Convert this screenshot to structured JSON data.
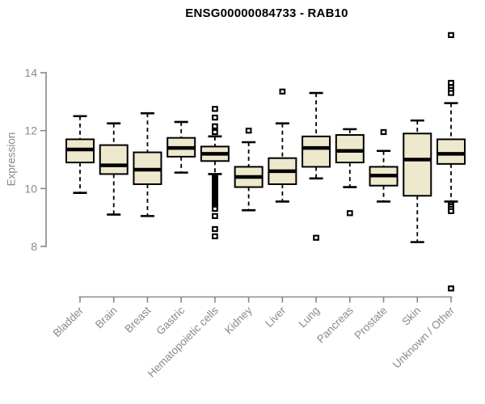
{
  "chart_data": {
    "type": "boxplot",
    "title": "ENSG00000084733 - RAB10",
    "ylabel": "Expression",
    "xlabel": "",
    "ylim": [
      6.3,
      15.5
    ],
    "yticks": [
      8,
      10,
      12,
      14
    ],
    "grid": false,
    "legend": "none",
    "box_fill_color": "#EEE8CD",
    "box_stroke_color": "#000000",
    "axis_color": "#888888",
    "tick_label_color": "#8a8a8a",
    "categories": [
      "Bladder",
      "Brain",
      "Breast",
      "Gastric",
      "Hematopoietic cells",
      "Kidney",
      "Liver",
      "Lung",
      "Pancreas",
      "Prostate",
      "Skin",
      "Unknown / Other"
    ],
    "series": [
      {
        "name": "Bladder",
        "whisker_low": 9.85,
        "q1": 10.9,
        "median": 11.35,
        "q3": 11.7,
        "whisker_high": 12.5,
        "outliers": []
      },
      {
        "name": "Brain",
        "whisker_low": 9.1,
        "q1": 10.5,
        "median": 10.8,
        "q3": 11.5,
        "whisker_high": 12.25,
        "outliers": []
      },
      {
        "name": "Breast",
        "whisker_low": 9.05,
        "q1": 10.15,
        "median": 10.65,
        "q3": 11.25,
        "whisker_high": 12.6,
        "outliers": []
      },
      {
        "name": "Gastric",
        "whisker_low": 10.55,
        "q1": 11.1,
        "median": 11.4,
        "q3": 11.75,
        "whisker_high": 12.3,
        "outliers": []
      },
      {
        "name": "Hematopoietic cells",
        "whisker_low": 10.5,
        "q1": 10.95,
        "median": 11.2,
        "q3": 11.45,
        "whisker_high": 11.8,
        "outliers": [
          12.75,
          12.45,
          12.15,
          11.95,
          10.4,
          10.35,
          10.3,
          10.25,
          10.2,
          10.15,
          10.1,
          10.05,
          10.0,
          9.95,
          9.9,
          9.85,
          9.8,
          9.75,
          9.7,
          9.65,
          9.6,
          9.55,
          9.5,
          9.45,
          9.4,
          9.35,
          9.3,
          9.05,
          8.6,
          8.35
        ]
      },
      {
        "name": "Kidney",
        "whisker_low": 9.25,
        "q1": 10.05,
        "median": 10.4,
        "q3": 10.75,
        "whisker_high": 11.6,
        "outliers": [
          12.0
        ]
      },
      {
        "name": "Liver",
        "whisker_low": 9.55,
        "q1": 10.15,
        "median": 10.6,
        "q3": 11.05,
        "whisker_high": 12.25,
        "outliers": [
          13.35
        ]
      },
      {
        "name": "Lung",
        "whisker_low": 10.35,
        "q1": 10.75,
        "median": 11.4,
        "q3": 11.8,
        "whisker_high": 13.3,
        "outliers": [
          8.3
        ]
      },
      {
        "name": "Pancreas",
        "whisker_low": 10.05,
        "q1": 10.9,
        "median": 11.3,
        "q3": 11.85,
        "whisker_high": 12.05,
        "outliers": [
          9.15
        ]
      },
      {
        "name": "Prostate",
        "whisker_low": 9.55,
        "q1": 10.1,
        "median": 10.45,
        "q3": 10.75,
        "whisker_high": 11.3,
        "outliers": [
          11.95
        ]
      },
      {
        "name": "Skin",
        "whisker_low": 8.15,
        "q1": 9.75,
        "median": 11.0,
        "q3": 11.9,
        "whisker_high": 12.35,
        "outliers": []
      },
      {
        "name": "Unknown / Other",
        "whisker_low": 9.55,
        "q1": 10.85,
        "median": 11.2,
        "q3": 11.7,
        "whisker_high": 12.95,
        "outliers": [
          15.3,
          13.65,
          13.5,
          13.4,
          13.3,
          9.45,
          9.38,
          9.3,
          9.22,
          6.55
        ]
      }
    ]
  }
}
